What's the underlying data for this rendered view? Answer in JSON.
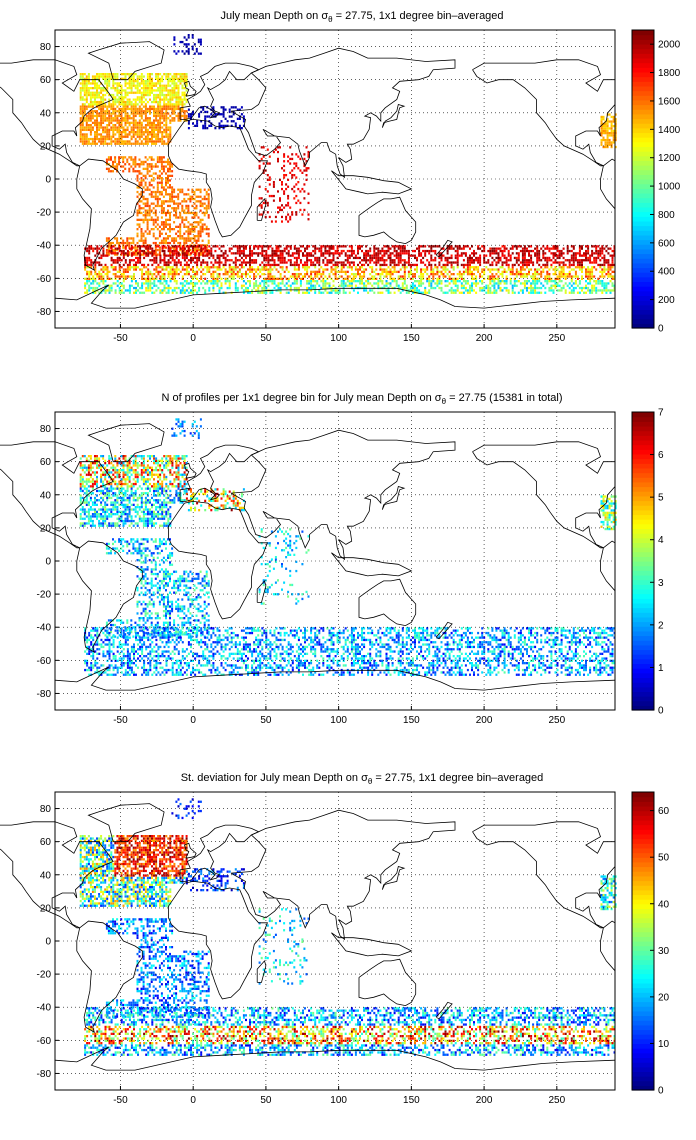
{
  "panels": [
    {
      "title": "July mean Depth on σθ = 27.75, 1x1 degree bin–averaged",
      "title_main": "July mean Depth on",
      "title_sym": "σ",
      "title_sub": "θ",
      "title_rest": " = 27.75, 1x1 degree bin–averaged",
      "variable": "mean depth",
      "colorbar_ticks": [
        "0",
        "200",
        "400",
        "600",
        "800",
        "1000",
        "1200",
        "1400",
        "1600",
        "1800",
        "2000"
      ],
      "colorbar_range": [
        0,
        2100
      ]
    },
    {
      "title": "N of profiles per 1x1 degree bin for July mean Depth on σθ = 27.75 (15381 in total)",
      "title_main": "N of profiles per 1x1 degree bin for July mean Depth on",
      "title_sym": "σ",
      "title_sub": "θ",
      "title_rest": " = 27.75 (15381 in total)",
      "variable": "profile count",
      "colorbar_ticks": [
        "0",
        "1",
        "2",
        "3",
        "4",
        "5",
        "6",
        "7"
      ],
      "colorbar_range": [
        0,
        7
      ]
    },
    {
      "title": "St. deviation for July mean Depth on σθ = 27.75, 1x1 degree bin–averaged",
      "title_main": "St. deviation for July mean Depth on",
      "title_sym": "σ",
      "title_sub": "θ",
      "title_rest": " = 27.75, 1x1 degree bin–averaged",
      "variable": "standard deviation",
      "colorbar_ticks": [
        "0",
        "10",
        "20",
        "30",
        "40",
        "50",
        "60"
      ],
      "colorbar_range": [
        0,
        64
      ]
    }
  ],
  "axes": {
    "x_ticks": [
      "-50",
      "0",
      "50",
      "100",
      "150",
      "200",
      "250"
    ],
    "y_ticks": [
      "80",
      "60",
      "40",
      "20",
      "0",
      "-20",
      "-40",
      "-60",
      "-80"
    ],
    "xlim": [
      -95,
      290
    ],
    "ylim": [
      -90,
      90
    ],
    "grid": "dotted"
  },
  "colormap": "jet"
}
